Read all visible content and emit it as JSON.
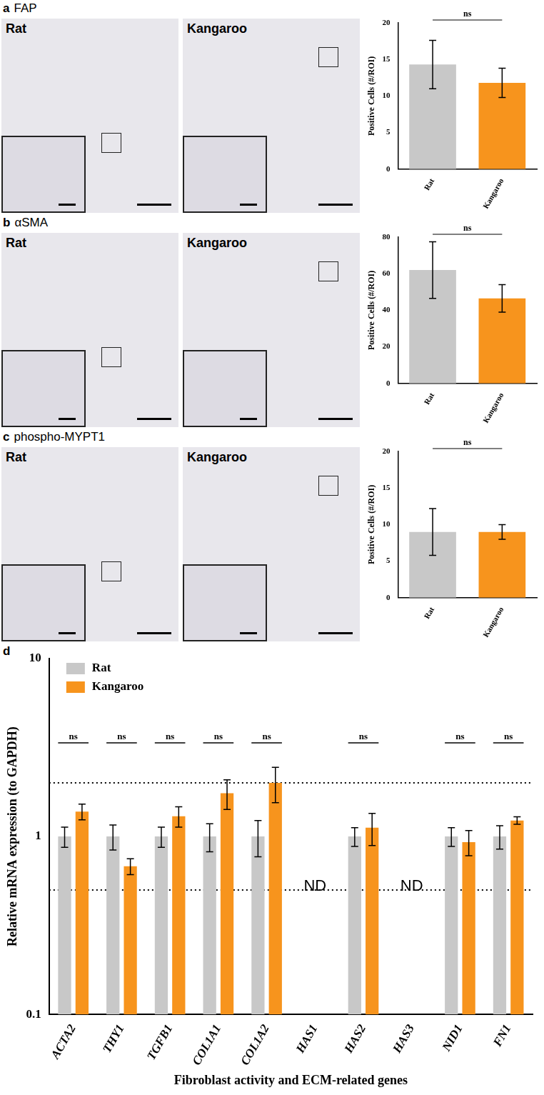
{
  "chart_data": [
    {
      "type": "bar",
      "panel_label": "a",
      "title": "FAP",
      "images": [
        "Rat",
        "Kangaroo"
      ],
      "categories": [
        "Rat",
        "Kangaroo"
      ],
      "values": [
        14.3,
        11.8
      ],
      "errors": [
        3.3,
        2.0
      ],
      "colors": [
        "#c8c8c8",
        "#f7941d"
      ],
      "y_label": "Positive Cells (#/ROI)",
      "ylim": [
        0,
        20
      ],
      "yticks": [
        0,
        5,
        10,
        15,
        20
      ],
      "significance": "ns",
      "grid": false
    },
    {
      "type": "bar",
      "panel_label": "b",
      "title": "αSMA",
      "images": [
        "Rat",
        "Kangaroo"
      ],
      "categories": [
        "Rat",
        "Kangaroo"
      ],
      "values": [
        62,
        46.5
      ],
      "errors": [
        15.5,
        7.5
      ],
      "colors": [
        "#c8c8c8",
        "#f7941d"
      ],
      "y_label": "Positive Cells (#/ROI)",
      "ylim": [
        0,
        80
      ],
      "yticks": [
        0,
        20,
        40,
        60,
        80
      ],
      "significance": "ns",
      "grid": false
    },
    {
      "type": "bar",
      "panel_label": "c",
      "title": "phospho-MYPT1",
      "images": [
        "Rat",
        "Kangaroo"
      ],
      "categories": [
        "Rat",
        "Kangaroo"
      ],
      "values": [
        9,
        9
      ],
      "errors": [
        3.2,
        1.0
      ],
      "colors": [
        "#c8c8c8",
        "#f7941d"
      ],
      "y_label": "Positive Cells (#/ROI)",
      "ylim": [
        0,
        20
      ],
      "yticks": [
        0,
        5,
        10,
        15,
        20
      ],
      "significance": "ns",
      "grid": false
    },
    {
      "type": "bar",
      "panel_label": "d",
      "log": "y",
      "y_label": "Relative mRNA expression (to GAPDH)",
      "x_label": "Fibroblast activity and ECM-related genes",
      "categories": [
        "ACTA2",
        "THY1",
        "TGFB1",
        "COL1A1",
        "COL1A2",
        "HAS1",
        "HAS2",
        "HAS3",
        "NID1",
        "FN1"
      ],
      "series": [
        {
          "name": "Rat",
          "color": "#c8c8c8",
          "values": [
            1,
            1,
            1,
            1,
            1,
            null,
            1,
            null,
            1,
            1
          ],
          "errors": [
            0.13,
            0.16,
            0.13,
            0.18,
            0.23,
            null,
            0.12,
            null,
            0.12,
            0.15
          ]
        },
        {
          "name": "Kangaroo",
          "color": "#f7941d",
          "values": [
            1.38,
            0.68,
            1.3,
            1.75,
            2.0,
            null,
            1.12,
            null,
            0.93,
            1.23
          ],
          "errors": [
            0.14,
            0.07,
            0.17,
            0.33,
            0.45,
            null,
            0.23,
            null,
            0.15,
            0.06
          ]
        }
      ],
      "ylim": [
        0.1,
        10
      ],
      "yticks": [
        0.1,
        1,
        10
      ],
      "reference_lines": {
        "values": [
          0.5,
          2
        ],
        "line_style": "dotted"
      },
      "significance": [
        "ns",
        "ns",
        "ns",
        "ns",
        "ns",
        null,
        "ns",
        null,
        "ns",
        "ns"
      ],
      "annotations": [
        {
          "category": "HAS1",
          "text": "ND"
        },
        {
          "category": "HAS3",
          "text": "ND"
        }
      ],
      "legend": "top-left",
      "grid": false
    }
  ]
}
